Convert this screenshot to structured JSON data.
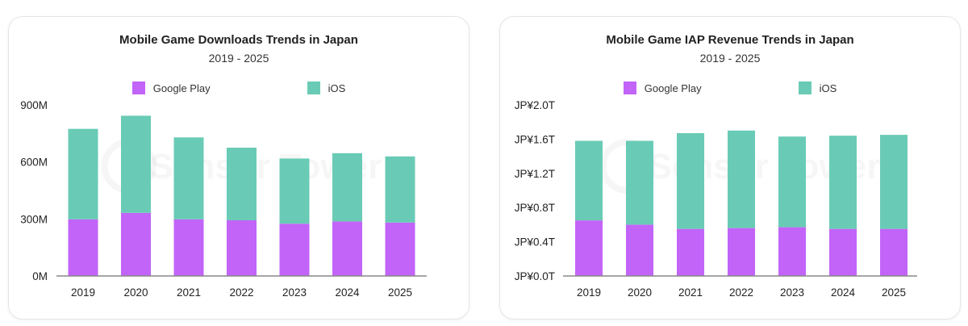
{
  "colors": {
    "google_play": "#c264f8",
    "ios": "#69cbb5",
    "axis": "#888888"
  },
  "chart_data": [
    {
      "type": "bar",
      "stacked": true,
      "title": "Mobile Game Downloads Trends in Japan",
      "subtitle": "2019 - 2025",
      "categories": [
        "2019",
        "2020",
        "2021",
        "2022",
        "2023",
        "2024",
        "2025"
      ],
      "series": [
        {
          "name": "Google Play",
          "values": [
            298,
            332,
            298,
            293,
            275,
            287,
            281
          ]
        },
        {
          "name": "iOS",
          "values": [
            476,
            511,
            431,
            382,
            343,
            359,
            348
          ]
        }
      ],
      "unit": "M",
      "ylim": [
        0,
        900
      ],
      "yticks": [
        0,
        300,
        600,
        900
      ],
      "ytick_labels": [
        "0M",
        "300M",
        "600M",
        "900M"
      ],
      "legend": "top",
      "grid": false
    },
    {
      "type": "bar",
      "stacked": true,
      "title": "Mobile Game IAP Revenue Trends in Japan",
      "subtitle": "2019 - 2025",
      "categories": [
        "2019",
        "2020",
        "2021",
        "2022",
        "2023",
        "2024",
        "2025"
      ],
      "series": [
        {
          "name": "Google Play",
          "values": [
            0.65,
            0.6,
            0.55,
            0.56,
            0.57,
            0.55,
            0.55
          ]
        },
        {
          "name": "iOS",
          "values": [
            0.93,
            0.98,
            1.12,
            1.14,
            1.06,
            1.09,
            1.1
          ]
        }
      ],
      "unit": "JP¥ T",
      "ylim": [
        0,
        2.0
      ],
      "yticks": [
        0,
        0.4,
        0.8,
        1.2,
        1.6,
        2.0
      ],
      "ytick_labels": [
        "JP¥0.0T",
        "JP¥0.4T",
        "JP¥0.8T",
        "JP¥1.2T",
        "JP¥1.6T",
        "JP¥2.0T"
      ],
      "legend": "top",
      "grid": false
    }
  ],
  "watermark": "Sensor Tower"
}
